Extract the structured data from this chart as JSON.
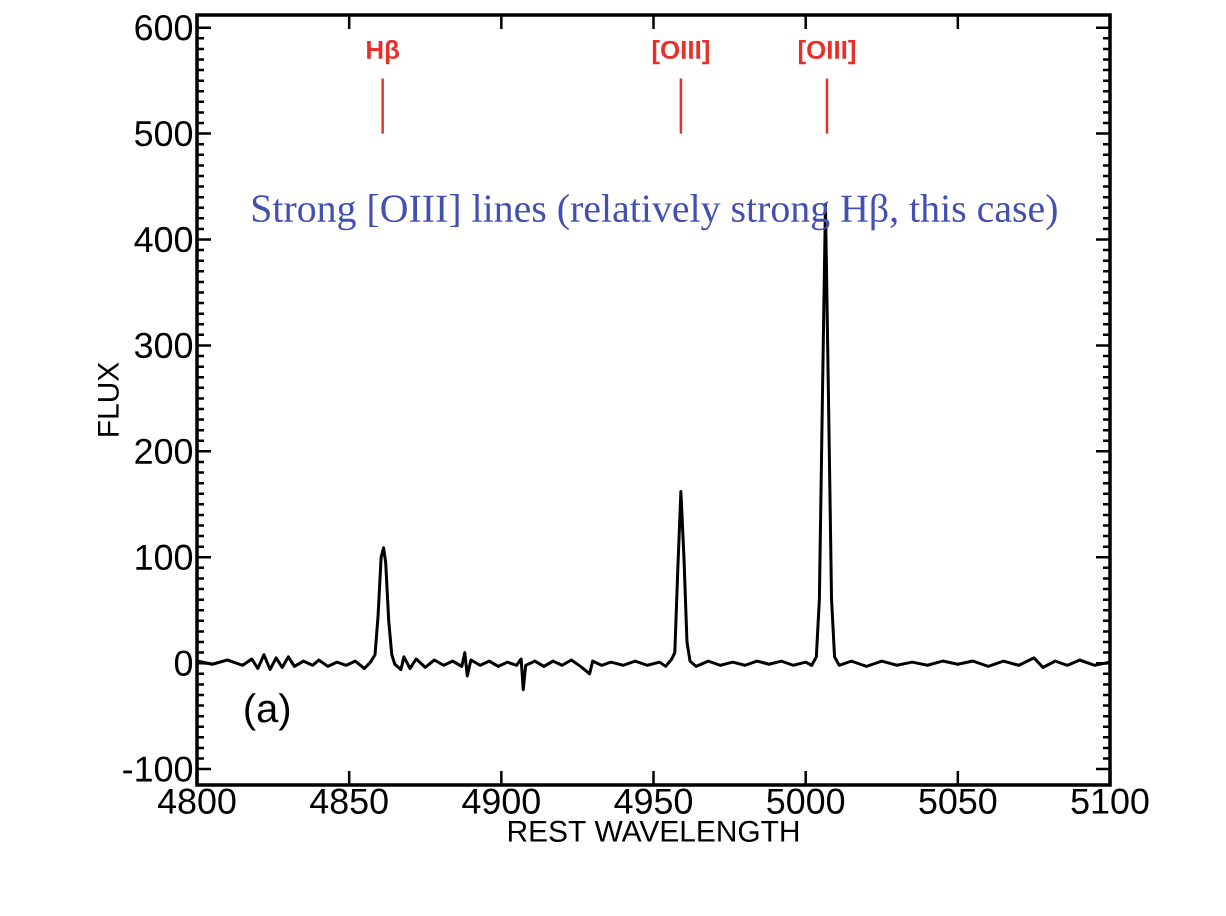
{
  "chart_data": {
    "type": "line",
    "xlabel": "REST WAVELENGTH",
    "ylabel": "FLUX",
    "xlim": [
      4800,
      5100
    ],
    "ylim": [
      -115,
      612
    ],
    "xticks": [
      4800,
      4850,
      4900,
      4950,
      5000,
      5050,
      5100
    ],
    "yticks": [
      -100,
      0,
      100,
      200,
      300,
      400,
      500,
      600
    ],
    "grid": false,
    "marker": "none",
    "line_style": "solid",
    "ref_lines": [
      {
        "axis": "x",
        "value": 4861,
        "label": "H**β**",
        "color": "#e8302a"
      },
      {
        "axis": "x",
        "value": 4959,
        "label": "[OIII]",
        "color": "#e8302a"
      },
      {
        "axis": "x",
        "value": 5007,
        "label": "[OIII]",
        "color": "#e8302a"
      }
    ],
    "series": [
      {
        "color": "#000000",
        "x": [
          4800,
          4805,
          4810,
          4815,
          4818,
          4820,
          4822,
          4824,
          4826,
          4828,
          4830,
          4832,
          4835,
          4838,
          4840,
          4843,
          4846,
          4849,
          4852,
          4855,
          4857,
          4858.5,
          4859.5,
          4860.5,
          4861.3,
          4862,
          4863,
          4864,
          4865,
          4867,
          4868,
          4870,
          4872,
          4875,
          4878,
          4881,
          4884,
          4887,
          4888,
          4888.8,
          4890,
          4893,
          4896,
          4899,
          4902,
          4905,
          4906.5,
          4907.2,
          4908,
          4911,
          4914,
          4917,
          4920,
          4923,
          4926,
          4929,
          4930,
          4933,
          4936,
          4940,
          4944,
          4948,
          4952,
          4954,
          4956,
          4957,
          4958,
          4959,
          4960,
          4961,
          4962,
          4964,
          4968,
          4972,
          4976,
          4980,
          4984,
          4988,
          4992,
          4996,
          5000,
          5002,
          5003.5,
          5004.5,
          5005.5,
          5006.5,
          5007.5,
          5008.5,
          5009.5,
          5011,
          5015,
          5020,
          5025,
          5030,
          5035,
          5040,
          5045,
          5050,
          5055,
          5060,
          5065,
          5070,
          5075,
          5078,
          5082,
          5086,
          5090,
          5095,
          5100
        ],
        "values": [
          2,
          -1,
          3,
          -2,
          4,
          -5,
          8,
          -6,
          5,
          -4,
          6,
          -3,
          2,
          -2,
          3,
          -3,
          1,
          -2,
          2,
          -5,
          1,
          8,
          45,
          100,
          109,
          95,
          40,
          8,
          -1,
          -6,
          6,
          -5,
          4,
          -4,
          3,
          -2,
          2,
          -3,
          10,
          -12,
          3,
          -2,
          2,
          -3,
          1,
          -2,
          4,
          -25,
          -2,
          2,
          -3,
          2,
          -2,
          3,
          -3,
          -10,
          2,
          -2,
          1,
          -2,
          2,
          -2,
          1,
          -3,
          4,
          10,
          90,
          162,
          100,
          20,
          2,
          -3,
          2,
          -2,
          1,
          -2,
          2,
          -1,
          2,
          -2,
          1,
          -2,
          6,
          60,
          250,
          433,
          250,
          60,
          6,
          -2,
          2,
          -3,
          2,
          -2,
          1,
          -2,
          2,
          -1,
          2,
          -3,
          2,
          -2,
          5,
          -4,
          2,
          -2,
          3,
          -2,
          1
        ]
      }
    ],
    "annotations": [
      "(a)",
      "Strong [OIII] lines (relatively strong Hβ, this case)"
    ]
  }
}
